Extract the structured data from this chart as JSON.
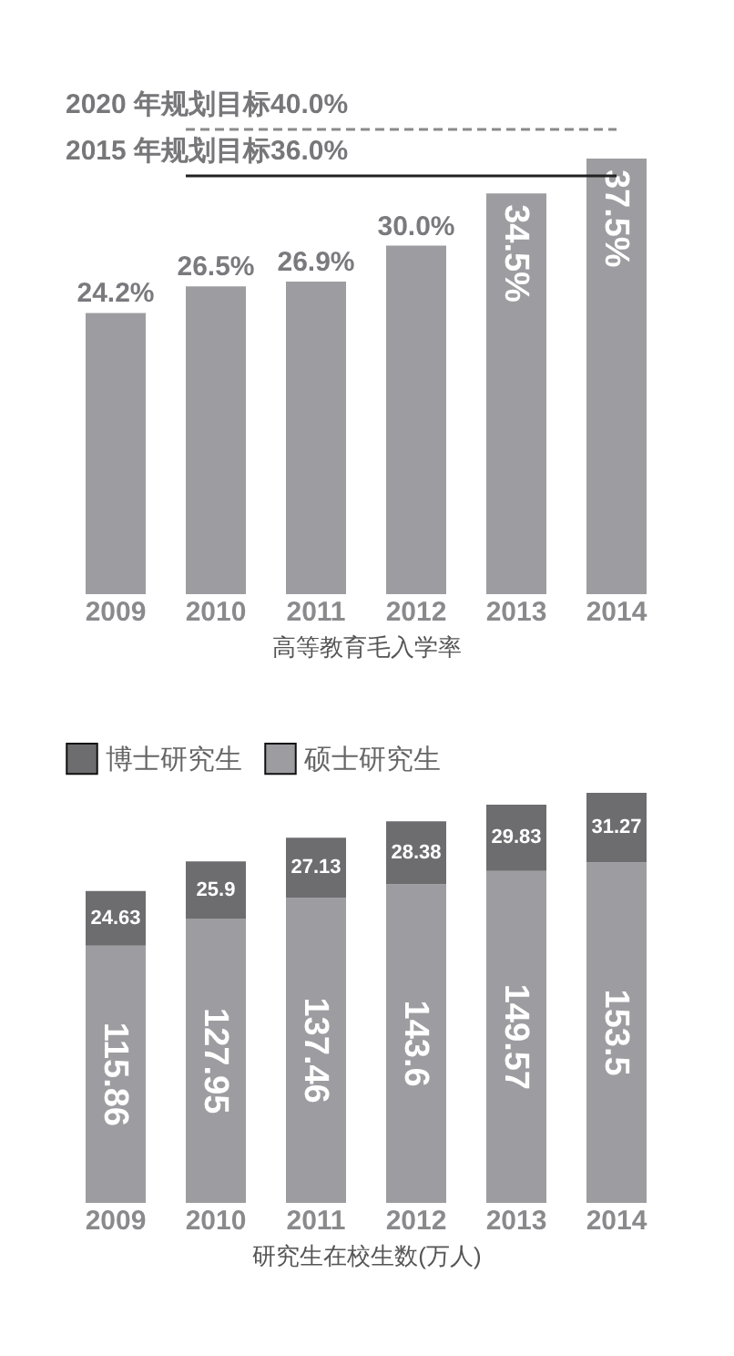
{
  "chart_data": [
    {
      "type": "bar",
      "categories": [
        "2009",
        "2010",
        "2011",
        "2012",
        "2013",
        "2014"
      ],
      "values": [
        24.2,
        26.5,
        26.9,
        30.0,
        34.5,
        37.5
      ],
      "color": "#9d9da1",
      "value_labels": [
        "24.2%",
        "26.5%",
        "26.9%",
        "30.0%",
        "34.5%",
        "37.5%"
      ],
      "xlabel": "高等教育毛入学率",
      "ref_lines": [
        {
          "axis": "y",
          "value": 40.0,
          "label": "2020 年规划目标40.0%",
          "color": "#8a8a8d",
          "line_style": "dashed"
        },
        {
          "axis": "y",
          "value": 36.0,
          "label": "2015 年规划目标36.0%",
          "color": "#222222",
          "line_style": "solid"
        }
      ]
    },
    {
      "type": "bar",
      "stacked": true,
      "categories": [
        "2009",
        "2010",
        "2011",
        "2012",
        "2013",
        "2014"
      ],
      "data_labels": true,
      "legend": "top left",
      "xlabel": "研究生在校生数(万人)",
      "series": [
        {
          "name": "硕士研究生",
          "color": "#9d9da1",
          "values": [
            115.86,
            127.95,
            137.46,
            143.6,
            149.57,
            153.5
          ]
        },
        {
          "name": "博士研究生",
          "color": "#6d6d70",
          "values": [
            24.63,
            25.9,
            27.13,
            28.38,
            29.83,
            31.27
          ]
        }
      ]
    }
  ]
}
